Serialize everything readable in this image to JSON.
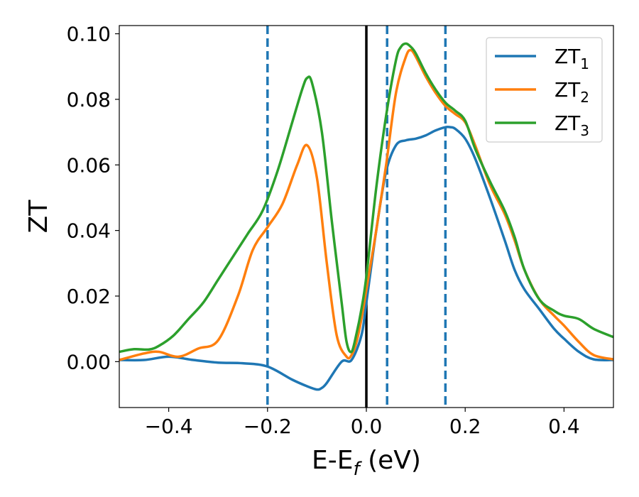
{
  "chart_data": {
    "type": "line",
    "title": "",
    "xlabel": {
      "base": "E-E",
      "sub": "f",
      "tail": " (eV)"
    },
    "ylabel": "ZT",
    "xlim": [
      -0.5,
      0.5
    ],
    "ylim": [
      -0.014,
      0.1025
    ],
    "xticks": [
      -0.4,
      -0.2,
      0.0,
      0.2,
      0.4
    ],
    "xtick_labels": [
      "−0.4",
      "−0.2",
      "0.0",
      "0.2",
      "0.4"
    ],
    "yticks": [
      0.0,
      0.02,
      0.04,
      0.06,
      0.08,
      0.1
    ],
    "ytick_labels": [
      "0.00",
      "0.02",
      "0.04",
      "0.06",
      "0.08",
      "0.10"
    ],
    "grid": false,
    "legend_position": "top-right",
    "vertical_lines": [
      {
        "x": 0.0,
        "style": "solid",
        "color": "#000000"
      },
      {
        "x": -0.2,
        "style": "dashed",
        "color": "#1f77b4"
      },
      {
        "x": 0.042,
        "style": "dashed",
        "color": "#1f77b4"
      },
      {
        "x": 0.16,
        "style": "dashed",
        "color": "#1f77b4"
      }
    ],
    "series": [
      {
        "name": "ZT",
        "sub": "1",
        "color": "#1f77b4",
        "x": [
          -0.5,
          -0.45,
          -0.4,
          -0.35,
          -0.3,
          -0.25,
          -0.2,
          -0.15,
          -0.12,
          -0.1,
          -0.09,
          -0.08,
          -0.05,
          -0.03,
          -0.01,
          0.0,
          0.02,
          0.04,
          0.06,
          0.08,
          0.1,
          0.12,
          0.14,
          0.16,
          0.17,
          0.18,
          0.2,
          0.22,
          0.25,
          0.28,
          0.3,
          0.32,
          0.35,
          0.38,
          0.4,
          0.43,
          0.46,
          0.5
        ],
        "y": [
          0.0005,
          0.0005,
          0.0015,
          0.0005,
          -0.0003,
          -0.0005,
          -0.0015,
          -0.0055,
          -0.0075,
          -0.0085,
          -0.008,
          -0.0065,
          0.0,
          0.0005,
          0.008,
          0.018,
          0.04,
          0.058,
          0.066,
          0.0675,
          0.068,
          0.069,
          0.0705,
          0.0715,
          0.0715,
          0.071,
          0.068,
          0.062,
          0.05,
          0.037,
          0.028,
          0.022,
          0.016,
          0.01,
          0.007,
          0.003,
          0.0007,
          0.0005
        ]
      },
      {
        "name": "ZT",
        "sub": "2",
        "color": "#ff7f0e",
        "x": [
          -0.5,
          -0.45,
          -0.42,
          -0.38,
          -0.34,
          -0.3,
          -0.26,
          -0.23,
          -0.2,
          -0.17,
          -0.14,
          -0.12,
          -0.1,
          -0.08,
          -0.06,
          -0.04,
          -0.03,
          -0.02,
          -0.01,
          0.0,
          0.02,
          0.04,
          0.06,
          0.08,
          0.09,
          0.1,
          0.12,
          0.14,
          0.16,
          0.18,
          0.2,
          0.22,
          0.25,
          0.28,
          0.3,
          0.32,
          0.35,
          0.38,
          0.4,
          0.43,
          0.46,
          0.5
        ],
        "y": [
          0.0005,
          0.0025,
          0.003,
          0.0015,
          0.004,
          0.0065,
          0.02,
          0.034,
          0.041,
          0.048,
          0.06,
          0.066,
          0.056,
          0.03,
          0.008,
          0.0015,
          0.002,
          0.006,
          0.013,
          0.022,
          0.04,
          0.06,
          0.082,
          0.093,
          0.095,
          0.093,
          0.087,
          0.082,
          0.078,
          0.0755,
          0.073,
          0.066,
          0.054,
          0.045,
          0.037,
          0.028,
          0.019,
          0.014,
          0.011,
          0.006,
          0.002,
          0.0007
        ]
      },
      {
        "name": "ZT",
        "sub": "3",
        "color": "#2ca02c",
        "x": [
          -0.5,
          -0.47,
          -0.44,
          -0.42,
          -0.39,
          -0.36,
          -0.33,
          -0.3,
          -0.27,
          -0.24,
          -0.21,
          -0.18,
          -0.15,
          -0.13,
          -0.12,
          -0.11,
          -0.09,
          -0.07,
          -0.05,
          -0.04,
          -0.03,
          -0.02,
          -0.01,
          0.0,
          0.02,
          0.04,
          0.06,
          0.07,
          0.08,
          0.09,
          0.1,
          0.12,
          0.14,
          0.16,
          0.18,
          0.2,
          0.22,
          0.25,
          0.28,
          0.3,
          0.32,
          0.35,
          0.38,
          0.4,
          0.43,
          0.46,
          0.5
        ],
        "y": [
          0.003,
          0.0038,
          0.0037,
          0.0048,
          0.008,
          0.013,
          0.018,
          0.025,
          0.032,
          0.039,
          0.046,
          0.058,
          0.073,
          0.083,
          0.0865,
          0.085,
          0.07,
          0.043,
          0.018,
          0.006,
          0.003,
          0.0085,
          0.016,
          0.026,
          0.053,
          0.075,
          0.092,
          0.096,
          0.097,
          0.096,
          0.094,
          0.088,
          0.083,
          0.079,
          0.0765,
          0.0735,
          0.065,
          0.055,
          0.046,
          0.038,
          0.028,
          0.019,
          0.0155,
          0.014,
          0.013,
          0.01,
          0.0075
        ]
      }
    ]
  }
}
